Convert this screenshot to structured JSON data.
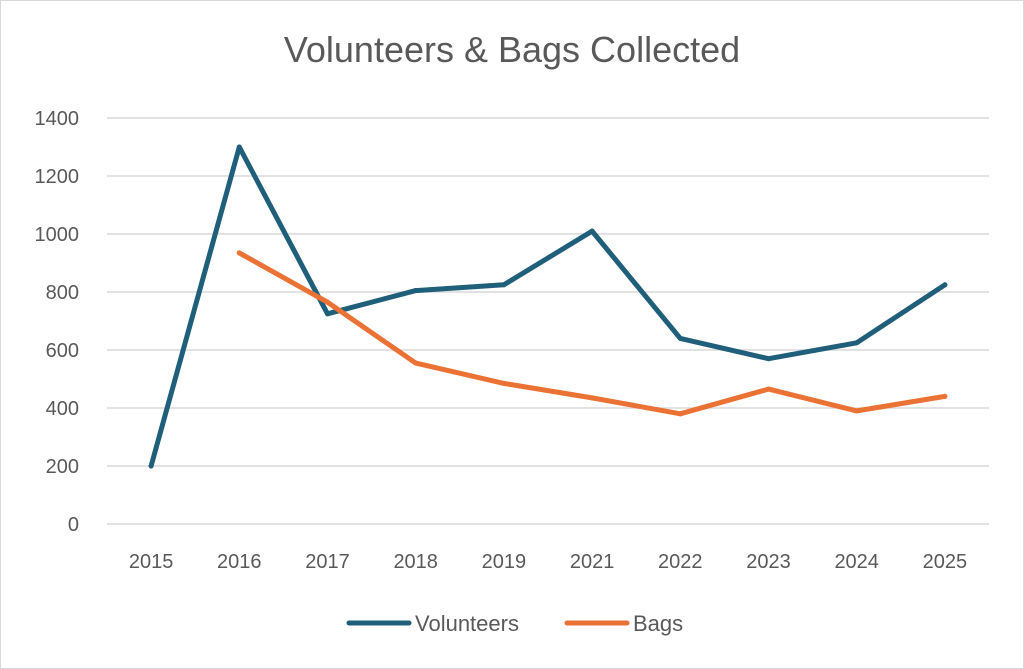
{
  "chart_data": {
    "type": "line",
    "title": "Volunteers & Bags Collected",
    "categories": [
      "2015",
      "2016",
      "2017",
      "2018",
      "2019",
      "2021",
      "2022",
      "2023",
      "2024",
      "2025"
    ],
    "series": [
      {
        "name": "Volunteers",
        "color": "#1f5f7a",
        "values": [
          200,
          1300,
          725,
          805,
          825,
          1010,
          640,
          570,
          625,
          825
        ]
      },
      {
        "name": "Bags",
        "color": "#ea7234",
        "values": [
          null,
          935,
          765,
          555,
          485,
          435,
          380,
          465,
          390,
          440
        ]
      }
    ],
    "ylim": [
      0,
      1400
    ],
    "yticks": [
      "0",
      "200",
      "400",
      "600",
      "800",
      "1000",
      "1200",
      "1400"
    ],
    "grid": true,
    "legend": "bottom"
  }
}
